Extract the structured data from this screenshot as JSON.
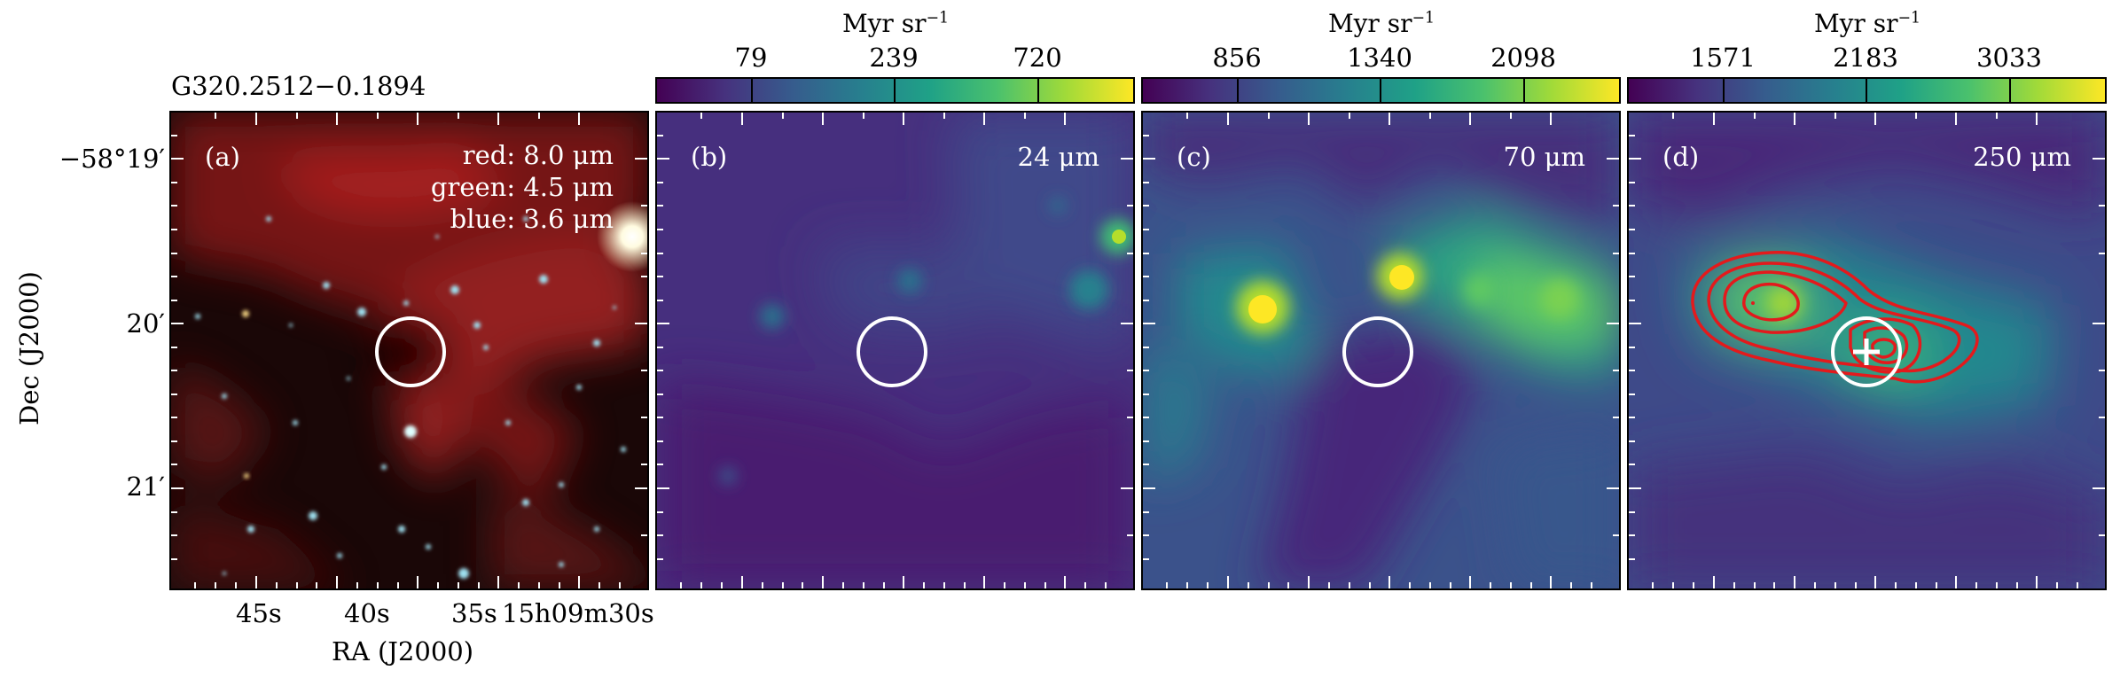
{
  "figure": {
    "source_name": "G320.2512−0.1894",
    "xlabel": "RA (J2000)",
    "ylabel": "Dec (J2000)",
    "ra_ticks": [
      "45s",
      "40s",
      "35s",
      "15h09m30s"
    ],
    "dec_ticks": [
      "−58°19′",
      "20′",
      "21′"
    ]
  },
  "panels": [
    {
      "tag": "(a)",
      "lines": [
        "red: 8.0 μm",
        "green: 4.5 μm",
        "blue: 3.6 μm"
      ],
      "colorbar": null
    },
    {
      "tag": "(b)",
      "band": "24 μm",
      "colorbar": {
        "unit": "Myr sr",
        "exponent": "−1",
        "ticks": [
          "79",
          "239",
          "720"
        ]
      }
    },
    {
      "tag": "(c)",
      "band": "70 μm",
      "colorbar": {
        "unit": "Myr sr",
        "exponent": "−1",
        "ticks": [
          "856",
          "1340",
          "2098"
        ]
      }
    },
    {
      "tag": "(d)",
      "band": "250 μm",
      "colorbar": {
        "unit": "Myr sr",
        "exponent": "−1",
        "ticks": [
          "1571",
          "2183",
          "3033"
        ]
      }
    }
  ],
  "colors": {
    "circle": "#ffffff",
    "contour": "#e31a1c",
    "colormap": "viridis"
  }
}
